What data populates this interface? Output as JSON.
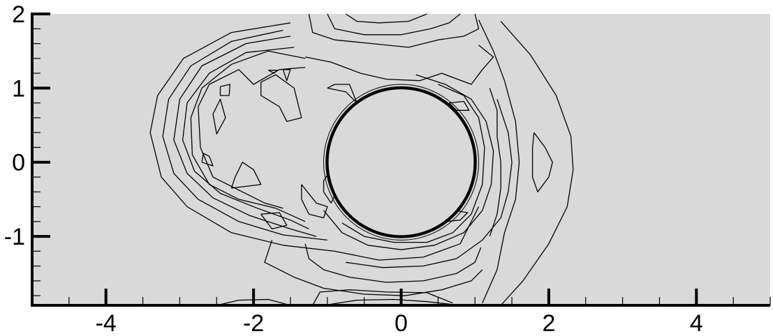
{
  "chart_data": {
    "type": "contour",
    "title": "",
    "xlabel": "",
    "ylabel": "",
    "xlim": [
      -5,
      5
    ],
    "ylim": [
      -1.93,
      2
    ],
    "x_ticks": [
      -4,
      -2,
      0,
      2,
      4
    ],
    "x_tick_labels": [
      "-4",
      "-2",
      "0",
      "2",
      "4"
    ],
    "y_ticks": [
      2,
      1,
      0,
      -1
    ],
    "y_tick_labels": [
      "2",
      "1",
      "0",
      "-1"
    ],
    "obstacle": {
      "shape": "circle",
      "center": [
        0,
        0
      ],
      "radius": 1.0
    },
    "grid": false,
    "background_color": "#d9d9d9",
    "line_color": "#000000",
    "contours": [
      {
        "name": "outer-left-arc",
        "points": [
          [
            -1.5,
            1.88
          ],
          [
            -2.3,
            1.75
          ],
          [
            -2.95,
            1.4
          ],
          [
            -3.3,
            0.9
          ],
          [
            -3.4,
            0.4
          ],
          [
            -3.25,
            -0.2
          ],
          [
            -2.9,
            -0.6
          ],
          [
            -2.3,
            -0.95
          ],
          [
            -1.6,
            -1.12
          ],
          [
            -0.9,
            -1.2
          ],
          [
            -0.3,
            -1.32
          ],
          [
            0.3,
            -1.28
          ],
          [
            0.8,
            -1.1
          ],
          [
            1.05,
            -0.6
          ]
        ]
      },
      {
        "name": "arc-2",
        "points": [
          [
            -1.6,
            1.78
          ],
          [
            -2.3,
            1.63
          ],
          [
            -2.85,
            1.3
          ],
          [
            -3.15,
            0.85
          ],
          [
            -3.23,
            0.35
          ],
          [
            -3.08,
            -0.15
          ],
          [
            -2.75,
            -0.5
          ],
          [
            -2.2,
            -0.8
          ],
          [
            -1.6,
            -0.98
          ],
          [
            -1.0,
            -1.05
          ]
        ]
      },
      {
        "name": "arc-3",
        "points": [
          [
            -1.5,
            1.7
          ],
          [
            -2.1,
            1.6
          ],
          [
            -2.7,
            1.3
          ],
          [
            -3.0,
            0.85
          ],
          [
            -3.08,
            0.3
          ],
          [
            -2.9,
            -0.15
          ],
          [
            -2.55,
            -0.48
          ],
          [
            -2.05,
            -0.72
          ],
          [
            -1.5,
            -0.9
          ],
          [
            -1.15,
            -1.0
          ]
        ]
      },
      {
        "name": "arc-4",
        "points": [
          [
            -1.45,
            1.55
          ],
          [
            -2.1,
            1.48
          ],
          [
            -2.6,
            1.2
          ],
          [
            -2.9,
            0.8
          ],
          [
            -2.96,
            0.3
          ],
          [
            -2.8,
            -0.12
          ],
          [
            -2.45,
            -0.42
          ],
          [
            -1.95,
            -0.62
          ],
          [
            -1.5,
            -0.78
          ],
          [
            -1.25,
            -0.9
          ]
        ]
      },
      {
        "name": "arc-5",
        "points": [
          [
            -1.3,
            1.4
          ],
          [
            -1.8,
            1.5
          ],
          [
            -2.3,
            1.32
          ],
          [
            -2.7,
            1.0
          ],
          [
            -2.85,
            0.6
          ],
          [
            -2.83,
            0.1
          ],
          [
            -2.6,
            -0.3
          ],
          [
            -2.2,
            -0.5
          ],
          [
            -1.7,
            -0.62
          ],
          [
            -1.3,
            -0.8
          ]
        ]
      },
      {
        "name": "arc-6",
        "points": [
          [
            -1.3,
            1.28
          ],
          [
            -1.65,
            1.25
          ],
          [
            -2.0,
            1.05
          ],
          [
            -2.2,
            1.25
          ],
          [
            -2.6,
            1.05
          ],
          [
            -2.75,
            0.75
          ],
          [
            -2.72,
            0.2
          ],
          [
            -2.55,
            -0.2
          ],
          [
            -2.15,
            -0.4
          ],
          [
            -1.85,
            -0.55
          ],
          [
            -1.6,
            -0.62
          ]
        ]
      },
      {
        "name": "inner-right-ring-1",
        "points": [
          [
            0.2,
            1.18
          ],
          [
            0.6,
            1.05
          ],
          [
            0.95,
            0.85
          ],
          [
            1.15,
            0.55
          ],
          [
            1.25,
            0.15
          ],
          [
            1.22,
            -0.3
          ],
          [
            1.1,
            -0.65
          ],
          [
            0.85,
            -0.95
          ],
          [
            0.45,
            -1.12
          ],
          [
            0.0,
            -1.18
          ],
          [
            -0.45,
            -1.12
          ],
          [
            -0.8,
            -0.95
          ],
          [
            -1.05,
            -0.65
          ]
        ]
      },
      {
        "name": "inner-right-ring-2",
        "points": [
          [
            0.5,
            1.05
          ],
          [
            0.85,
            0.9
          ],
          [
            1.05,
            0.6
          ],
          [
            1.13,
            0.2
          ],
          [
            1.1,
            -0.3
          ],
          [
            0.95,
            -0.7
          ],
          [
            0.7,
            -0.95
          ],
          [
            0.35,
            -1.08
          ],
          [
            -0.1,
            -1.08
          ],
          [
            -0.5,
            -1.0
          ],
          [
            -0.8,
            -0.82
          ]
        ]
      },
      {
        "name": "right-outer-ring",
        "points": [
          [
            1.35,
            1.9
          ],
          [
            1.75,
            1.45
          ],
          [
            2.1,
            0.9
          ],
          [
            2.3,
            0.35
          ],
          [
            2.33,
            -0.1
          ],
          [
            2.25,
            -0.6
          ],
          [
            2.0,
            -1.1
          ],
          [
            1.65,
            -1.6
          ],
          [
            1.35,
            -1.93
          ]
        ]
      },
      {
        "name": "right-ring-2",
        "points": [
          [
            1.05,
            1.92
          ],
          [
            1.25,
            1.5
          ],
          [
            1.4,
            1.1
          ],
          [
            1.55,
            0.55
          ],
          [
            1.6,
            0.0
          ],
          [
            1.55,
            -0.5
          ],
          [
            1.4,
            -0.95
          ],
          [
            1.3,
            -1.45
          ],
          [
            1.1,
            -1.9
          ]
        ]
      },
      {
        "name": "right-ring-3",
        "points": [
          [
            1.3,
            0.85
          ],
          [
            1.45,
            0.4
          ],
          [
            1.5,
            0.0
          ],
          [
            1.45,
            -0.4
          ],
          [
            1.35,
            -0.75
          ],
          [
            1.1,
            -1.05
          ],
          [
            0.75,
            -1.3
          ],
          [
            0.3,
            -1.4
          ],
          [
            -0.25,
            -1.42
          ],
          [
            -0.75,
            -1.35
          ]
        ]
      },
      {
        "name": "right-loop",
        "points": [
          [
            1.2,
            1.0
          ],
          [
            1.3,
            0.7
          ],
          [
            1.3,
            0.35
          ],
          [
            1.35,
            0.0
          ],
          [
            1.35,
            -0.35
          ],
          [
            1.3,
            -0.7
          ],
          [
            1.2,
            -1.0
          ]
        ]
      },
      {
        "name": "right-blob",
        "points": [
          [
            1.8,
            0.4
          ],
          [
            1.95,
            0.2
          ],
          [
            2.05,
            0.0
          ],
          [
            2.0,
            -0.2
          ],
          [
            1.85,
            -0.4
          ],
          [
            1.78,
            -0.2
          ],
          [
            1.78,
            0.2
          ],
          [
            1.8,
            0.4
          ]
        ]
      },
      {
        "name": "top-lobe-1",
        "points": [
          [
            -1.25,
            2.0
          ],
          [
            -1.2,
            1.75
          ],
          [
            -0.9,
            1.65
          ],
          [
            -0.4,
            1.6
          ],
          [
            0.1,
            1.55
          ],
          [
            0.5,
            1.65
          ],
          [
            0.85,
            1.7
          ],
          [
            1.05,
            1.8
          ],
          [
            1.0,
            2.0
          ]
        ]
      },
      {
        "name": "top-lobe-2",
        "points": [
          [
            -1.0,
            2.0
          ],
          [
            -0.9,
            1.8
          ],
          [
            -0.5,
            1.72
          ],
          [
            0.0,
            1.72
          ],
          [
            0.4,
            1.8
          ],
          [
            0.65,
            1.88
          ],
          [
            0.8,
            2.0
          ]
        ]
      },
      {
        "name": "top-lobe-3",
        "points": [
          [
            -0.75,
            2.0
          ],
          [
            -0.6,
            1.9
          ],
          [
            -0.3,
            1.88
          ],
          [
            0.1,
            1.9
          ],
          [
            0.35,
            2.0
          ]
        ]
      },
      {
        "name": "top-mid",
        "points": [
          [
            -1.3,
            1.42
          ],
          [
            -0.95,
            1.35
          ],
          [
            -0.55,
            1.2
          ],
          [
            -0.2,
            1.12
          ],
          [
            0.25,
            1.1
          ],
          [
            0.55,
            1.2
          ],
          [
            0.95,
            1.05
          ],
          [
            1.1,
            1.25
          ],
          [
            1.25,
            1.42
          ],
          [
            1.05,
            1.58
          ]
        ]
      },
      {
        "name": "bottom-lobe-1",
        "points": [
          [
            -1.3,
            -1.1
          ],
          [
            -1.25,
            -1.3
          ],
          [
            -1.05,
            -1.45
          ],
          [
            -0.7,
            -1.55
          ],
          [
            -0.2,
            -1.62
          ],
          [
            0.3,
            -1.6
          ],
          [
            0.75,
            -1.5
          ],
          [
            1.0,
            -1.35
          ],
          [
            1.08,
            -1.15
          ]
        ]
      },
      {
        "name": "bottom-lobe-2",
        "points": [
          [
            -1.75,
            -1.05
          ],
          [
            -1.85,
            -1.35
          ],
          [
            -1.45,
            -1.55
          ],
          [
            -1.05,
            -1.7
          ],
          [
            -0.5,
            -1.78
          ],
          [
            0.05,
            -1.8
          ],
          [
            0.55,
            -1.72
          ],
          [
            0.95,
            -1.6
          ],
          [
            1.1,
            -1.45
          ]
        ]
      },
      {
        "name": "bottom-lobe-3",
        "points": [
          [
            -1.2,
            -1.93
          ],
          [
            -1.1,
            -1.75
          ],
          [
            -0.7,
            -1.72
          ],
          [
            -0.2,
            -1.75
          ],
          [
            0.35,
            -1.76
          ],
          [
            0.7,
            -1.9
          ]
        ]
      },
      {
        "name": "bottom-edge-1",
        "points": [
          [
            -2.5,
            -1.93
          ],
          [
            -2.2,
            -1.86
          ],
          [
            -1.8,
            -1.85
          ],
          [
            -1.5,
            -1.93
          ]
        ]
      },
      {
        "name": "bottom-edge-2",
        "points": [
          [
            -1.05,
            -1.93
          ],
          [
            -0.6,
            -1.86
          ],
          [
            -0.1,
            -1.85
          ],
          [
            0.35,
            -1.88
          ],
          [
            0.8,
            -1.93
          ]
        ]
      },
      {
        "name": "blob-a",
        "points": [
          [
            -2.7,
            0.0
          ],
          [
            -2.55,
            -0.05
          ],
          [
            -2.6,
            0.08
          ],
          [
            -2.68,
            0.12
          ],
          [
            -2.7,
            0.0
          ]
        ]
      },
      {
        "name": "blob-b",
        "points": [
          [
            -2.55,
            0.65
          ],
          [
            -2.45,
            0.85
          ],
          [
            -2.38,
            0.6
          ],
          [
            -2.5,
            0.38
          ],
          [
            -2.55,
            0.65
          ]
        ]
      },
      {
        "name": "blob-c",
        "points": [
          [
            -2.45,
            1.02
          ],
          [
            -2.32,
            1.05
          ],
          [
            -2.33,
            0.9
          ],
          [
            -2.45,
            0.9
          ],
          [
            -2.45,
            1.02
          ]
        ]
      },
      {
        "name": "blob-d",
        "points": [
          [
            -1.6,
            1.25
          ],
          [
            -1.55,
            1.1
          ],
          [
            -1.5,
            1.25
          ],
          [
            -1.6,
            1.25
          ]
        ]
      },
      {
        "name": "blob-e",
        "points": [
          [
            -1.8,
            1.24
          ],
          [
            -1.68,
            1.24
          ],
          [
            -1.72,
            1.2
          ],
          [
            -1.8,
            1.24
          ]
        ]
      },
      {
        "name": "blob-f",
        "points": [
          [
            -2.3,
            -0.35
          ],
          [
            -1.9,
            -0.3
          ],
          [
            -2.0,
            -0.1
          ],
          [
            -2.15,
            0.0
          ],
          [
            -2.25,
            -0.2
          ],
          [
            -2.3,
            -0.35
          ]
        ]
      },
      {
        "name": "blob-g",
        "points": [
          [
            -1.9,
            -0.7
          ],
          [
            -1.75,
            -0.9
          ],
          [
            -1.55,
            -0.85
          ],
          [
            -1.65,
            -0.68
          ],
          [
            -1.9,
            -0.7
          ]
        ]
      },
      {
        "name": "blob-h",
        "points": [
          [
            -1.0,
            1.0
          ],
          [
            -0.75,
            0.95
          ],
          [
            -0.6,
            0.8
          ],
          [
            -0.7,
            1.05
          ],
          [
            -0.9,
            1.05
          ],
          [
            -1.0,
            1.0
          ]
        ]
      },
      {
        "name": "blob-i",
        "points": [
          [
            -1.05,
            -0.25
          ],
          [
            -0.95,
            -0.1
          ],
          [
            -0.85,
            -0.35
          ],
          [
            -0.95,
            -0.55
          ],
          [
            -1.05,
            -0.4
          ],
          [
            -1.05,
            -0.25
          ]
        ]
      },
      {
        "name": "blob-j",
        "points": [
          [
            -1.35,
            -0.3
          ],
          [
            -1.15,
            -0.55
          ],
          [
            -1.0,
            -0.6
          ],
          [
            -1.05,
            -0.75
          ],
          [
            -1.25,
            -0.7
          ],
          [
            -1.35,
            -0.5
          ],
          [
            -1.35,
            -0.3
          ]
        ]
      },
      {
        "name": "blob-k",
        "points": [
          [
            -1.9,
            1.08
          ],
          [
            -1.7,
            1.18
          ],
          [
            -1.45,
            1.0
          ],
          [
            -1.35,
            0.6
          ],
          [
            -1.55,
            0.55
          ],
          [
            -1.65,
            0.75
          ],
          [
            -1.9,
            0.9
          ],
          [
            -1.9,
            1.08
          ]
        ]
      },
      {
        "name": "blob-l",
        "points": [
          [
            0.65,
            0.8
          ],
          [
            0.85,
            0.82
          ],
          [
            0.92,
            0.7
          ],
          [
            0.75,
            0.7
          ],
          [
            0.65,
            0.8
          ]
        ]
      },
      {
        "name": "blob-m",
        "points": [
          [
            0.6,
            -0.8
          ],
          [
            0.8,
            -0.78
          ],
          [
            0.9,
            -0.68
          ],
          [
            0.72,
            -0.65
          ],
          [
            0.6,
            -0.8
          ]
        ]
      }
    ]
  }
}
